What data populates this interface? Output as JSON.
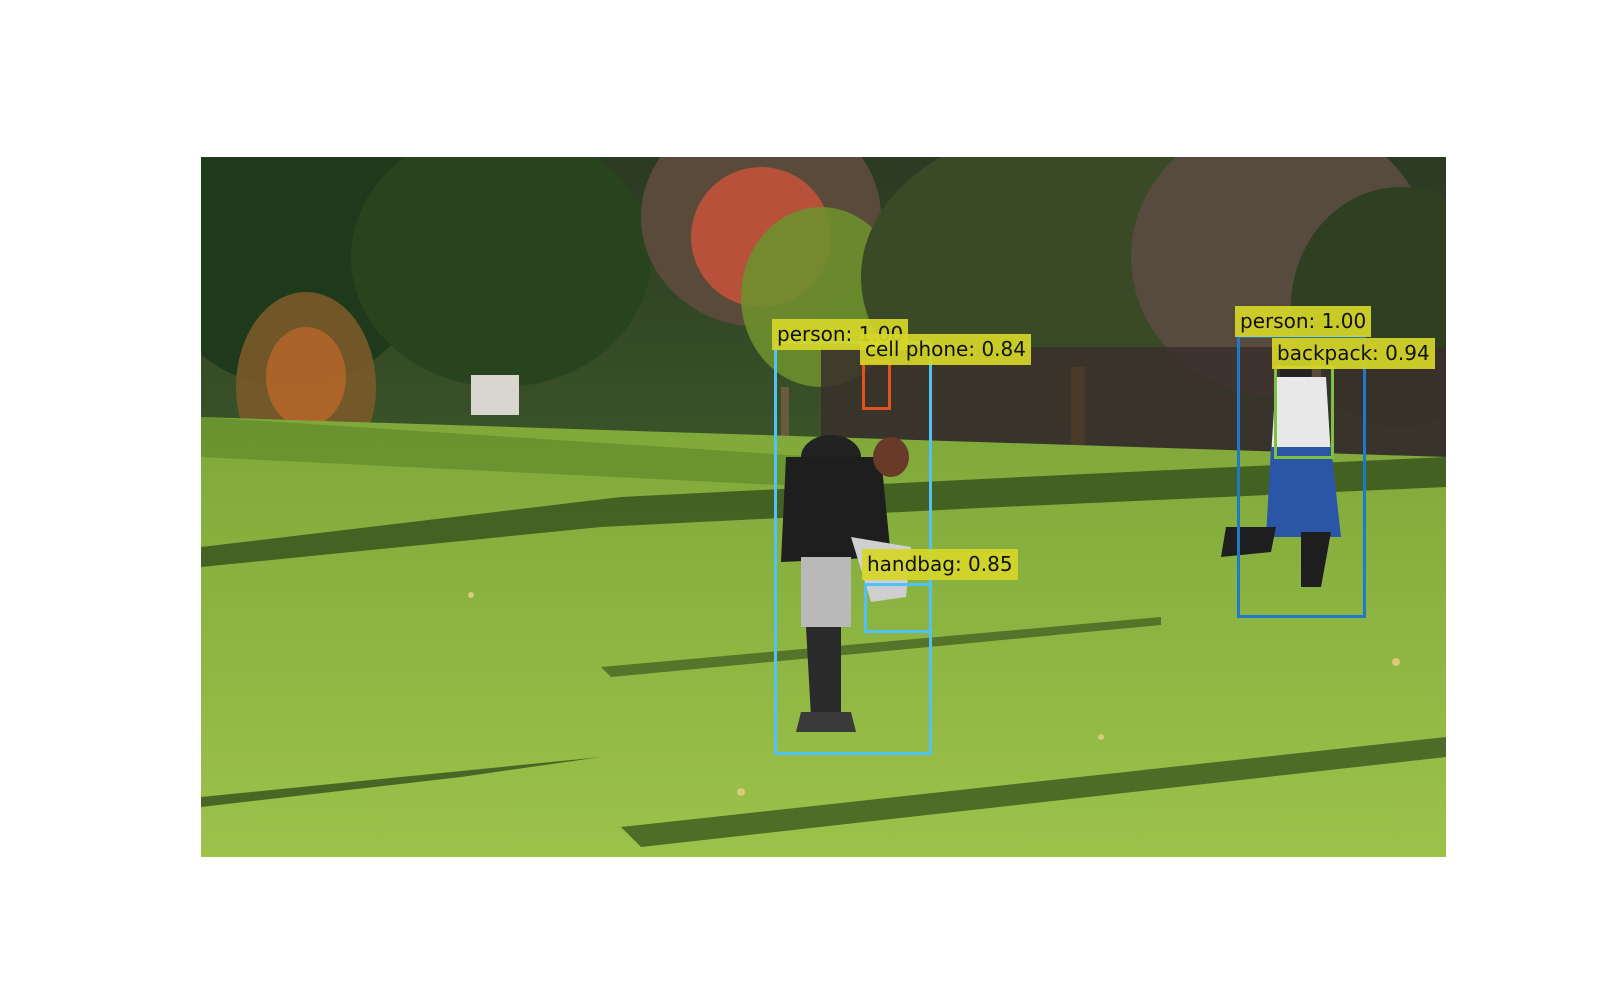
{
  "detections": [
    {
      "label": "person: 1.00",
      "color": "#4fc3f7"
    },
    {
      "label": "cell phone: 0.84",
      "color": "#e0531f"
    },
    {
      "label": "handbag: 0.85",
      "color": "#4fc3f7"
    },
    {
      "label": "person: 1.00",
      "color": "#1f78c8"
    },
    {
      "label": "backpack: 0.94",
      "color": "#7cc142"
    }
  ],
  "colors": {
    "label_background": "#d6d628",
    "grass": "#8bb33a",
    "foliage": "#2f4a1f",
    "autumn_tree": "#c8523a"
  }
}
